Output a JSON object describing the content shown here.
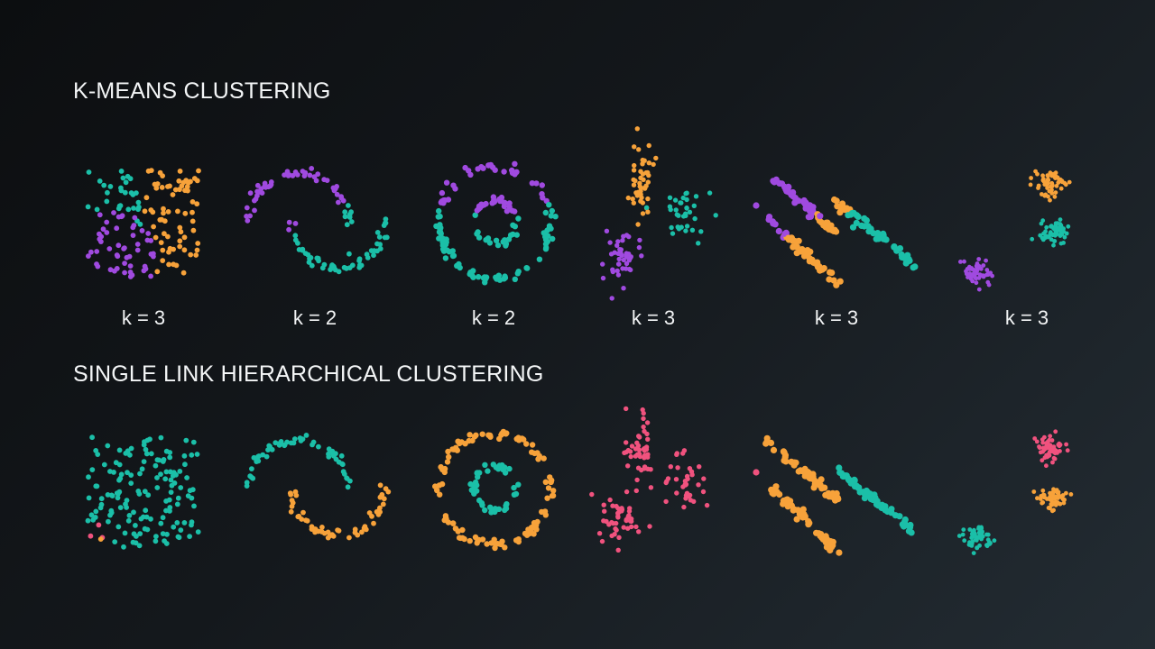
{
  "sections": {
    "kmeans_title": "K-MEANS CLUSTERING",
    "single_link_title": "SINGLE LINK HIERARCHICAL CLUSTERING"
  },
  "k_labels": [
    "k = 3",
    "k = 2",
    "k = 2",
    "k = 3",
    "k = 3",
    "k = 3"
  ],
  "colors": {
    "teal": "#1bbfa8",
    "purple": "#a04ae0",
    "orange": "#f7a23a",
    "pink": "#f0527e"
  },
  "chart_data": [
    {
      "type": "scatter",
      "dataset": "uniform-square",
      "method": "k-means",
      "k_label": "k = 3",
      "clusters": [
        "teal",
        "orange",
        "purple"
      ]
    },
    {
      "type": "scatter",
      "dataset": "two-moons",
      "method": "k-means",
      "k_label": "k = 2",
      "clusters": [
        "purple",
        "teal"
      ]
    },
    {
      "type": "scatter",
      "dataset": "concentric-circles",
      "method": "k-means",
      "k_label": "k = 2",
      "clusters": [
        "purple",
        "teal"
      ]
    },
    {
      "type": "scatter",
      "dataset": "anisotropic-blobs",
      "method": "k-means",
      "k_label": "k = 3",
      "clusters": [
        "orange",
        "teal",
        "purple"
      ]
    },
    {
      "type": "scatter",
      "dataset": "parallel-bands",
      "method": "k-means",
      "k_label": "k = 3",
      "clusters": [
        "purple",
        "orange",
        "teal"
      ]
    },
    {
      "type": "scatter",
      "dataset": "three-blobs",
      "method": "k-means",
      "k_label": "k = 3",
      "clusters": [
        "orange",
        "teal",
        "purple"
      ]
    },
    {
      "type": "scatter",
      "dataset": "uniform-square",
      "method": "single-link",
      "clusters": [
        "teal",
        "orange",
        "pink"
      ]
    },
    {
      "type": "scatter",
      "dataset": "two-moons",
      "method": "single-link",
      "clusters": [
        "teal",
        "orange"
      ]
    },
    {
      "type": "scatter",
      "dataset": "concentric-circles",
      "method": "single-link",
      "clusters": [
        "orange",
        "teal"
      ]
    },
    {
      "type": "scatter",
      "dataset": "anisotropic-blobs",
      "method": "single-link",
      "clusters": [
        "pink"
      ]
    },
    {
      "type": "scatter",
      "dataset": "parallel-bands",
      "method": "single-link",
      "clusters": [
        "orange",
        "teal",
        "pink"
      ]
    },
    {
      "type": "scatter",
      "dataset": "three-blobs",
      "method": "single-link",
      "clusters": [
        "pink",
        "orange",
        "teal"
      ]
    }
  ]
}
